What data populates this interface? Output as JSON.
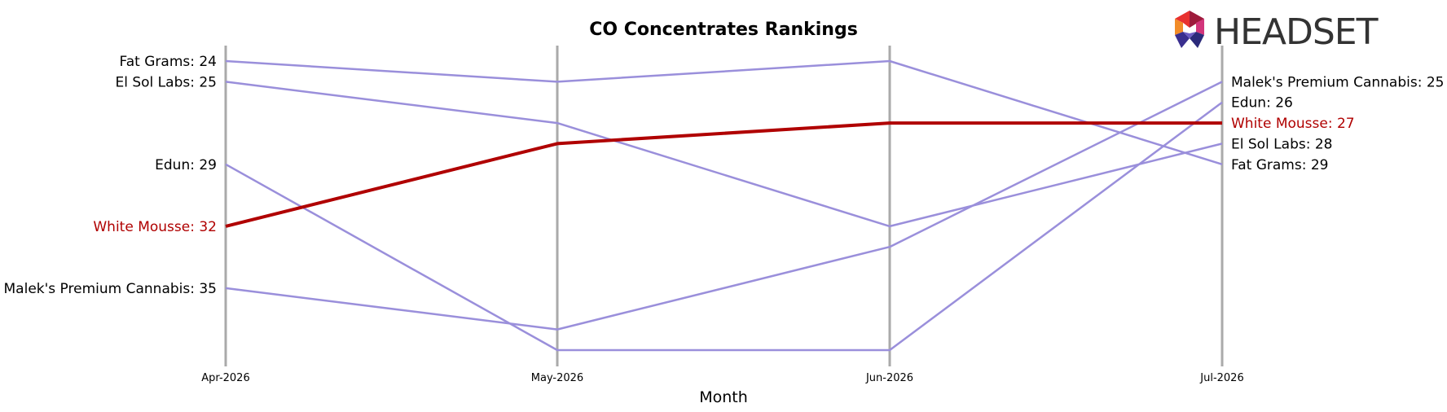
{
  "chart_data": {
    "type": "line",
    "title": "CO Concentrates Rankings",
    "xlabel": "Month",
    "ylabel": "",
    "x": [
      "Apr-2026",
      "May-2026",
      "Jun-2026",
      "Jul-2026"
    ],
    "y_inverted": true,
    "ylim": [
      38.5,
      22.8
    ],
    "grid": "vertical lines at each month",
    "highlight_color": "#b00000",
    "other_color": "#9a8fdb",
    "series": [
      {
        "name": "Fat Grams",
        "values": [
          24,
          25,
          24,
          29
        ],
        "highlight": false
      },
      {
        "name": "El Sol Labs",
        "values": [
          25,
          27,
          32,
          28
        ],
        "highlight": false
      },
      {
        "name": "Edun",
        "values": [
          29,
          38,
          38,
          26
        ],
        "highlight": false
      },
      {
        "name": "White Mousse",
        "values": [
          32,
          28,
          27,
          27
        ],
        "highlight": true
      },
      {
        "name": "Malek's Premium Cannabis",
        "values": [
          35,
          37,
          33,
          25
        ],
        "highlight": false
      }
    ],
    "left_labels": [
      {
        "text": "Fat Grams: 24",
        "series": 0
      },
      {
        "text": "El Sol Labs: 25",
        "series": 1
      },
      {
        "text": "Edun: 29",
        "series": 2
      },
      {
        "text": "White Mousse: 32",
        "series": 3
      },
      {
        "text": "Malek's Premium Cannabis: 35",
        "series": 4
      }
    ],
    "right_labels": [
      {
        "text": "Malek's Premium Cannabis: 25",
        "series": 4
      },
      {
        "text": "Edun: 26",
        "series": 2
      },
      {
        "text": "White Mousse: 27",
        "series": 3
      },
      {
        "text": "El Sol Labs: 28",
        "series": 1
      },
      {
        "text": "Fat Grams: 29",
        "series": 0
      }
    ]
  },
  "logo": {
    "text": "HEADSET",
    "icon": "headset-hexagon-logo"
  }
}
